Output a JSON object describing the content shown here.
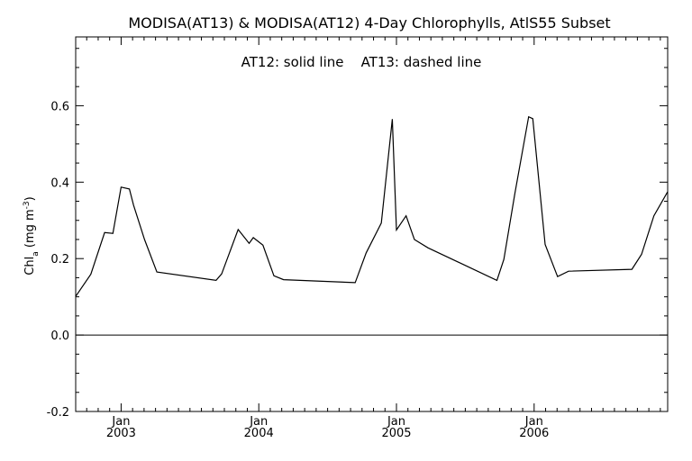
{
  "chart_data": {
    "type": "line",
    "title": "MODISA(AT13) & MODISA(AT12) 4-Day Chlorophylls, AtlS55 Subset",
    "annotation": "AT12: solid line    AT13: dashed line",
    "ylabel": "Chl",
    "ylabel_sub": "a",
    "ylabel_unit_open": " (mg m",
    "ylabel_unit_sup": "-3",
    "ylabel_unit_close": ")",
    "xlim": [
      2002.67,
      2006.97
    ],
    "ylim": [
      -0.2,
      0.78
    ],
    "yticks": [
      -0.2,
      0.0,
      0.2,
      0.4,
      0.6
    ],
    "yticklabels": [
      "-0.2",
      "0.0",
      "0.2",
      "0.4",
      "0.6"
    ],
    "xticks": [
      {
        "value": 2003.0,
        "month": "Jan",
        "year": "2003"
      },
      {
        "value": 2004.0,
        "month": "Jan",
        "year": "2004"
      },
      {
        "value": 2005.0,
        "month": "Jan",
        "year": "2005"
      },
      {
        "value": 2006.0,
        "month": "Jan",
        "year": "2006"
      }
    ],
    "reference_line": 0.0,
    "series": [
      {
        "name": "AT12",
        "style": "solid",
        "x": [
          2002.67,
          2002.78,
          2002.88,
          2002.94,
          2003.0,
          2003.06,
          2003.09,
          2003.17,
          2003.26,
          2003.69,
          2003.73,
          2003.85,
          2003.93,
          2003.96,
          2004.03,
          2004.11,
          2004.18,
          2004.7,
          2004.78,
          2004.89,
          2004.97,
          2005.0,
          2005.07,
          2005.13,
          2005.23,
          2005.73,
          2005.78,
          2005.86,
          2005.96,
          2005.99,
          2006.08,
          2006.17,
          2006.25,
          2006.71,
          2006.78,
          2006.87,
          2006.97
        ],
        "y": [
          0.101,
          0.159,
          0.268,
          0.266,
          0.387,
          0.382,
          0.34,
          0.25,
          0.165,
          0.143,
          0.16,
          0.276,
          0.24,
          0.255,
          0.235,
          0.155,
          0.145,
          0.137,
          0.215,
          0.293,
          0.565,
          0.275,
          0.312,
          0.25,
          0.228,
          0.143,
          0.198,
          0.37,
          0.571,
          0.566,
          0.237,
          0.153,
          0.167,
          0.172,
          0.211,
          0.312,
          0.375
        ]
      }
    ]
  },
  "colors": {
    "background": "#ffffff",
    "axis": "#000000",
    "line": "#000000"
  }
}
